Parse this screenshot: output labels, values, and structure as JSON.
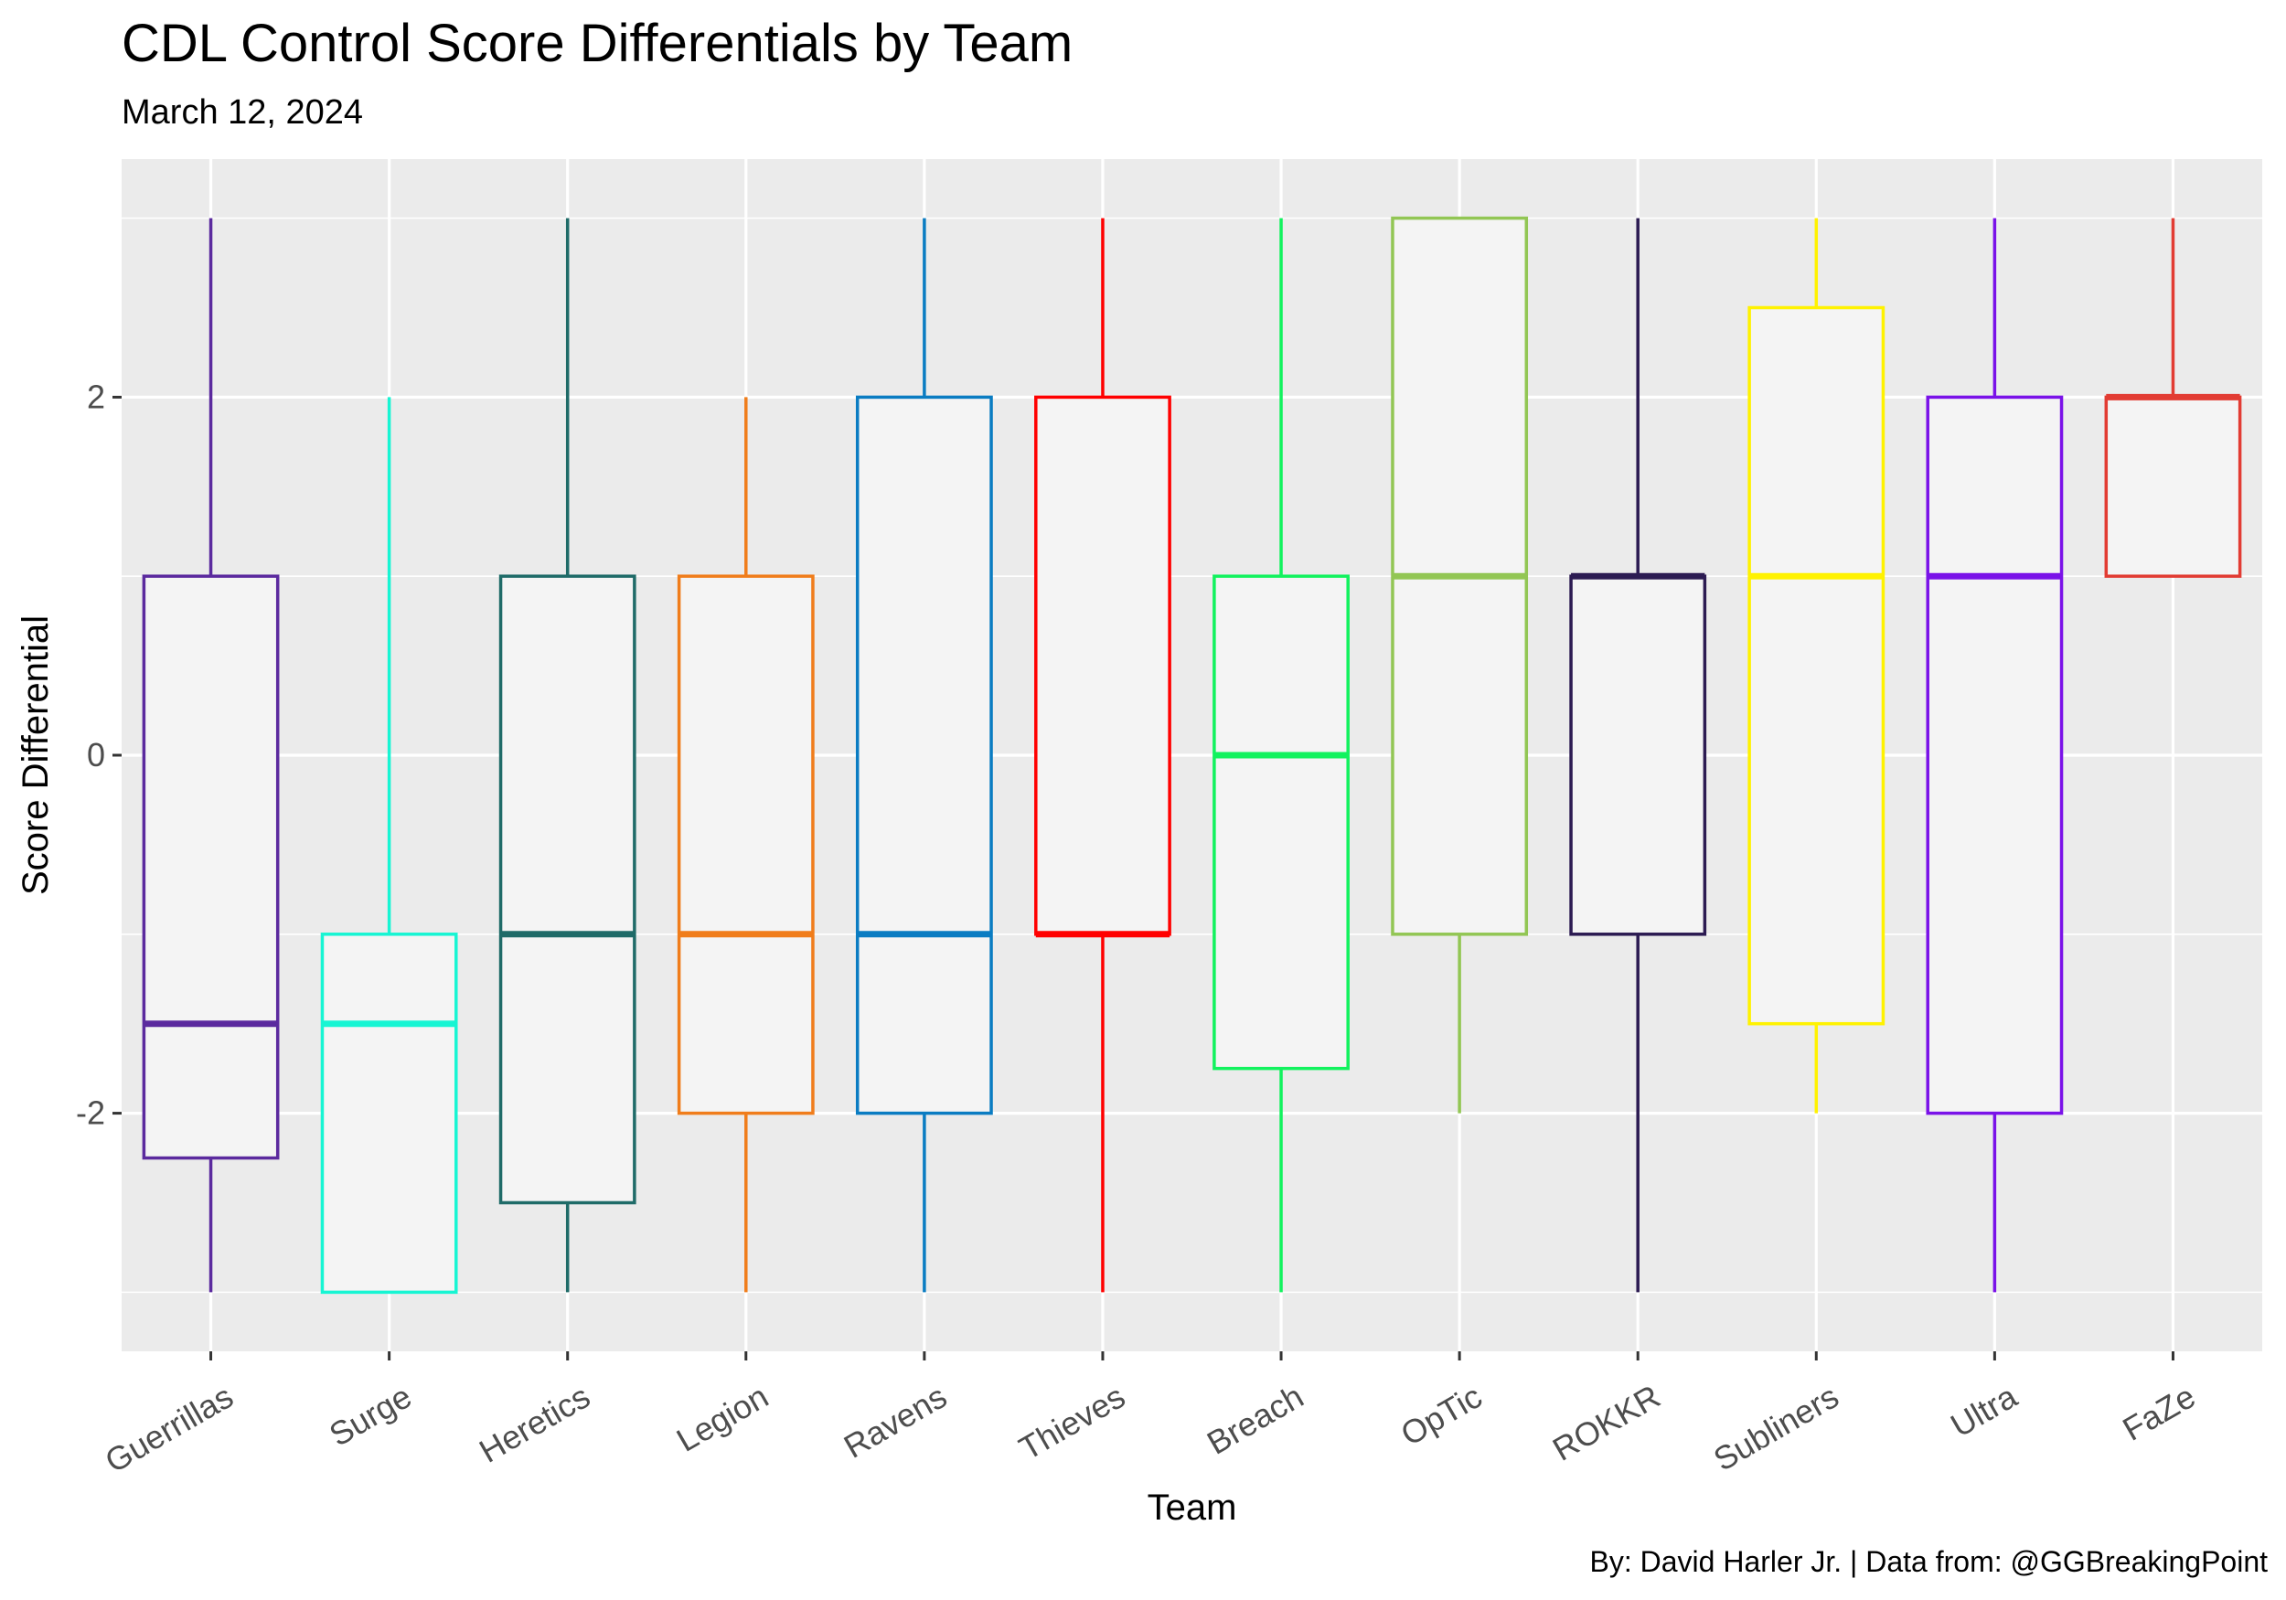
{
  "chart_data": {
    "type": "boxplot",
    "title": "CDL Control Score Differentials by Team",
    "subtitle": "March 12, 2024",
    "caption": "By: David Harler Jr. | Data from: @GGBreakingPoint",
    "xlabel": "Team",
    "ylabel": "Score Differential",
    "ylim": [
      -3.33,
      3.33
    ],
    "yticks": [
      -2,
      0,
      2
    ],
    "ytick_labels": [
      "-2",
      "0",
      "2"
    ],
    "grid": true,
    "legend": "none",
    "categories": [
      "Guerrillas",
      "Surge",
      "Heretics",
      "Legion",
      "Ravens",
      "Thieves",
      "Breach",
      "OpTic",
      "ROKKR",
      "Subliners",
      "Ultra",
      "FaZe"
    ],
    "boxes": [
      {
        "team": "Guerrillas",
        "min": -3,
        "q1": -2.25,
        "median": -1.5,
        "q3": 1,
        "max": 3,
        "color": "#5b2a9e"
      },
      {
        "team": "Surge",
        "min": -3,
        "q1": -3,
        "median": -1.5,
        "q3": -1,
        "max": 2,
        "color": "#17f5d3"
      },
      {
        "team": "Heretics",
        "min": -3,
        "q1": -2.5,
        "median": -1,
        "q3": 1,
        "max": 3,
        "color": "#1f6b68"
      },
      {
        "team": "Legion",
        "min": -3,
        "q1": -2,
        "median": -1,
        "q3": 1,
        "max": 2,
        "color": "#f07d1b"
      },
      {
        "team": "Ravens",
        "min": -3,
        "q1": -2,
        "median": -1,
        "q3": 2,
        "max": 3,
        "color": "#0a7cc2"
      },
      {
        "team": "Thieves",
        "min": -3,
        "q1": -1,
        "median": -1,
        "q3": 2,
        "max": 3,
        "color": "#ff0000"
      },
      {
        "team": "Breach",
        "min": -3,
        "q1": -1.75,
        "median": 0,
        "q3": 1,
        "max": 3,
        "color": "#12f25e"
      },
      {
        "team": "OpTic",
        "min": -2,
        "q1": -1,
        "median": 1,
        "q3": 3,
        "max": 3,
        "color": "#92c654"
      },
      {
        "team": "ROKKR",
        "min": -3,
        "q1": -1,
        "median": 1,
        "q3": 1,
        "max": 3,
        "color": "#2c1b52"
      },
      {
        "team": "Subliners",
        "min": -2,
        "q1": -1.5,
        "median": 1,
        "q3": 2.5,
        "max": 3,
        "color": "#fff200"
      },
      {
        "team": "Ultra",
        "min": -3,
        "q1": -2,
        "median": 1,
        "q3": 2,
        "max": 3,
        "color": "#7a12e8"
      },
      {
        "team": "FaZe",
        "min": 1,
        "q1": 1,
        "median": 2,
        "q3": 2,
        "max": 3,
        "color": "#e23c33"
      }
    ]
  }
}
